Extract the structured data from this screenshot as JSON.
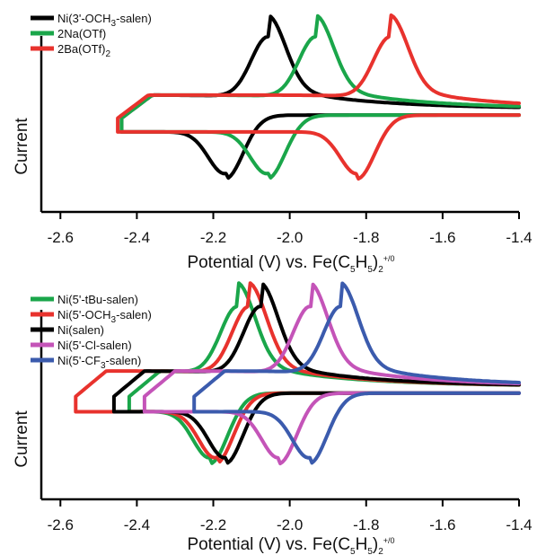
{
  "chart_data": [
    {
      "type": "line",
      "title": "",
      "ylabel": "Current",
      "xlabel": {
        "pre": "Potential (V) vs. Fe(C",
        "s1": "5",
        "mid": "H",
        "s2": "5",
        "post": ")",
        "s3": "2",
        "sup": "+/0"
      },
      "xlim": [
        -2.65,
        -1.4
      ],
      "xticks": [
        "-2.6",
        "-2.4",
        "-2.2",
        "-2.0",
        "-1.8",
        "-1.6",
        "-1.4"
      ],
      "xtick_values": [
        -2.6,
        -2.4,
        -2.2,
        -2.0,
        -1.8,
        -1.6,
        -1.4
      ],
      "legend_position": "top-left",
      "series": [
        {
          "name": "Ni(3'-OCH3-salen)",
          "legend": {
            "pre": "Ni(3'-OCH",
            "sub": "3",
            "post": "-salen)"
          },
          "color": "#000000",
          "E_start": -2.44,
          "E_end": -1.4,
          "E_peak_cathodic": -2.165,
          "E_peak_anodic": -2.055,
          "peak_height": 1.0
        },
        {
          "name": "2Na(OTf)",
          "legend": {
            "pre": "2Na(OTf)",
            "sub": "",
            "post": ""
          },
          "color": "#1aa64a",
          "E_start": -2.44,
          "E_end": -1.4,
          "E_peak_cathodic": -2.055,
          "E_peak_anodic": -1.93,
          "peak_height": 1.0
        },
        {
          "name": "2Ba(OTf)2",
          "legend": {
            "pre": "2Ba(OTf)",
            "sub": "2",
            "post": ""
          },
          "color": "#e8322d",
          "E_start": -2.45,
          "E_end": -1.4,
          "E_peak_cathodic": -1.82,
          "E_peak_anodic": -1.735,
          "peak_height": 1.0
        }
      ]
    },
    {
      "type": "line",
      "title": "",
      "ylabel": "Current",
      "xlabel": {
        "pre": "Potential (V) vs. Fe(C",
        "s1": "5",
        "mid": "H",
        "s2": "5",
        "post": ")",
        "s3": "2",
        "sup": "+/0"
      },
      "xlim": [
        -2.65,
        -1.4
      ],
      "xticks": [
        "-2.6",
        "-2.4",
        "-2.2",
        "-2.0",
        "-1.8",
        "-1.6",
        "-1.4"
      ],
      "xtick_values": [
        -2.6,
        -2.4,
        -2.2,
        -2.0,
        -1.8,
        -1.6,
        -1.4
      ],
      "legend_position": "top-left",
      "series": [
        {
          "name": "Ni(5'-tBu-salen)",
          "legend": {
            "pre": "Ni(5'-tBu-salen)",
            "sub": "",
            "post": ""
          },
          "color": "#1aa64a",
          "E_start": -2.42,
          "E_end": -1.4,
          "E_peak_cathodic": -2.205,
          "E_peak_anodic": -2.135,
          "peak_height": 1.0
        },
        {
          "name": "Ni(5'-OCH3-salen)",
          "legend": {
            "pre": "Ni(5'-OCH",
            "sub": "3",
            "post": "-salen)"
          },
          "color": "#e8322d",
          "E_start": -2.56,
          "E_end": -1.4,
          "E_peak_cathodic": -2.19,
          "E_peak_anodic": -2.105,
          "peak_height": 1.0
        },
        {
          "name": "Ni(salen)",
          "legend": {
            "pre": "Ni(salen)",
            "sub": "",
            "post": ""
          },
          "color": "#000000",
          "E_start": -2.46,
          "E_end": -1.4,
          "E_peak_cathodic": -2.165,
          "E_peak_anodic": -2.075,
          "peak_height": 1.0
        },
        {
          "name": "Ni(5'-Cl-salen)",
          "legend": {
            "pre": "Ni(5'-Cl-salen)",
            "sub": "",
            "post": ""
          },
          "color": "#c454b8",
          "E_start": -2.38,
          "E_end": -1.4,
          "E_peak_cathodic": -2.025,
          "E_peak_anodic": -1.945,
          "peak_height": 1.0
        },
        {
          "name": "Ni(5'-CF3-salen)",
          "legend": {
            "pre": "Ni(5'-CF",
            "sub": "3",
            "post": "-salen)"
          },
          "color": "#3b5bad",
          "E_start": -2.25,
          "E_end": -1.4,
          "E_peak_cathodic": -1.945,
          "E_peak_anodic": -1.865,
          "peak_height": 1.0
        }
      ]
    }
  ]
}
